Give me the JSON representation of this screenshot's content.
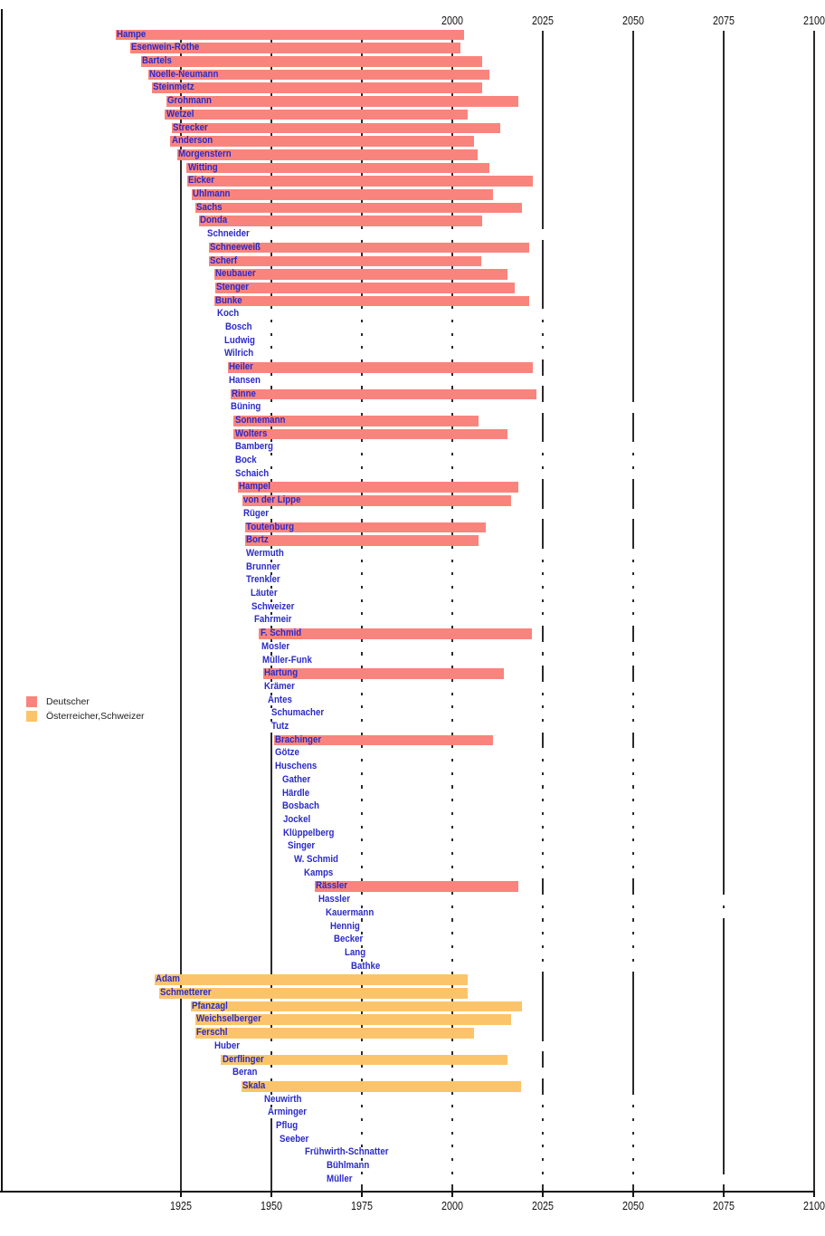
{
  "chart_data": {
    "type": "bar",
    "variant": "timeline-lifespan-gantt",
    "title": "",
    "xlabel": "",
    "ylabel": "",
    "x_unit": "year",
    "xlim": [
      1876.5,
      2100.25
    ],
    "bottom_tick_labels": [
      "1925",
      "1950",
      "1975",
      "2000",
      "2025",
      "2050",
      "2075",
      "2100"
    ],
    "top_tick_labels": [
      "2000",
      "2025",
      "2050",
      "2075",
      "2100"
    ],
    "gridline_years": [
      1925,
      1950,
      1975,
      2000,
      2025,
      2050,
      2075,
      2100
    ],
    "grid": "vertical-behind-bars",
    "legend_position": "left-middle",
    "legend": [
      {
        "label": "Deutscher",
        "color": "#f9847d"
      },
      {
        "label": "Österreicher,Schweizer",
        "color": "#fbc46a"
      }
    ],
    "colors": {
      "german_bar": "#f9847d",
      "austrian_swiss_bar": "#fbc46a",
      "living_bar_mask": "#ffffff",
      "name_label": "#2a2ac8",
      "axis": "#111111",
      "background": "#ffffff"
    },
    "people": [
      {
        "name": "Hampe",
        "group": "Deutscher",
        "birth": 1906.9,
        "death": 2003.2,
        "mask_until": null
      },
      {
        "name": "Esenwein-Rothe",
        "group": "Deutscher",
        "birth": 1910.9,
        "death": 2002.2,
        "mask_until": null
      },
      {
        "name": "Bartels",
        "group": "Deutscher",
        "birth": 1914.0,
        "death": 2008.2,
        "mask_until": null
      },
      {
        "name": "Noelle-Neumann",
        "group": "Deutscher",
        "birth": 1915.9,
        "death": 2010.2,
        "mask_until": null
      },
      {
        "name": "Steinmetz",
        "group": "Deutscher",
        "birth": 1917.0,
        "death": 2008.2,
        "mask_until": null
      },
      {
        "name": "Grohmann",
        "group": "Deutscher",
        "birth": 1920.9,
        "death": 2018.2,
        "mask_until": null
      },
      {
        "name": "Wetzel",
        "group": "Deutscher",
        "birth": 1920.6,
        "death": 2004.2,
        "mask_until": null
      },
      {
        "name": "Strecker",
        "group": "Deutscher",
        "birth": 1922.4,
        "death": 2013.3,
        "mask_until": null
      },
      {
        "name": "Anderson",
        "group": "Deutscher",
        "birth": 1922.1,
        "death": 2006.1,
        "mask_until": null
      },
      {
        "name": "Morgenstern",
        "group": "Deutscher",
        "birth": 1923.9,
        "death": 2007.1,
        "mask_until": null
      },
      {
        "name": "Witting",
        "group": "Deutscher",
        "birth": 1926.6,
        "death": 2010.2,
        "mask_until": null
      },
      {
        "name": "Eicker",
        "group": "Deutscher",
        "birth": 1926.7,
        "death": 2022.3,
        "mask_until": null
      },
      {
        "name": "Uhlmann",
        "group": "Deutscher",
        "birth": 1928.0,
        "death": 2011.2,
        "mask_until": null
      },
      {
        "name": "Sachs",
        "group": "Deutscher",
        "birth": 1929.0,
        "death": 2019.3,
        "mask_until": null
      },
      {
        "name": "Donda",
        "group": "Deutscher",
        "birth": 1929.9,
        "death": 2008.2,
        "mask_until": null
      },
      {
        "name": "Schneider",
        "group": "Deutscher",
        "birth": 1931.9,
        "death": null,
        "mask_until": 2040
      },
      {
        "name": "Schneeweiß",
        "group": "Deutscher",
        "birth": 1932.7,
        "death": 2021.2,
        "mask_until": null
      },
      {
        "name": "Scherf",
        "group": "Deutscher",
        "birth": 1932.7,
        "death": 2008.1,
        "mask_until": null
      },
      {
        "name": "Neubauer",
        "group": "Deutscher",
        "birth": 1934.3,
        "death": 2015.2,
        "mask_until": null
      },
      {
        "name": "Stenger",
        "group": "Deutscher",
        "birth": 1934.5,
        "death": 2017.2,
        "mask_until": null
      },
      {
        "name": "Bunke",
        "group": "Deutscher",
        "birth": 1934.3,
        "death": 2021.2,
        "mask_until": null
      },
      {
        "name": "Koch",
        "group": "Deutscher",
        "birth": 1934.7,
        "death": null,
        "mask_until": 2040
      },
      {
        "name": "Bosch",
        "group": "Deutscher",
        "birth": 1937.0,
        "death": null,
        "mask_until": 2040
      },
      {
        "name": "Ludwig",
        "group": "Deutscher",
        "birth": 1936.8,
        "death": null,
        "mask_until": 2040
      },
      {
        "name": "Wilrich",
        "group": "Deutscher",
        "birth": 1936.7,
        "death": null,
        "mask_until": 2040
      },
      {
        "name": "Heiler",
        "group": "Deutscher",
        "birth": 1938.0,
        "death": 2022.2,
        "mask_until": null
      },
      {
        "name": "Hansen",
        "group": "Deutscher",
        "birth": 1937.9,
        "death": null,
        "mask_until": 2040
      },
      {
        "name": "Rinne",
        "group": "Deutscher",
        "birth": 1938.8,
        "death": 2023.2,
        "mask_until": null
      },
      {
        "name": "Büning",
        "group": "Deutscher",
        "birth": 1938.5,
        "death": null,
        "mask_until": 2062
      },
      {
        "name": "Sonnemann",
        "group": "Deutscher",
        "birth": 1939.6,
        "death": 2007.2,
        "mask_until": null
      },
      {
        "name": "Wolters",
        "group": "Deutscher",
        "birth": 1939.6,
        "death": 2015.2,
        "mask_until": null
      },
      {
        "name": "Bamberg",
        "group": "Deutscher",
        "birth": 1939.7,
        "death": null,
        "mask_until": 2062
      },
      {
        "name": "Bock",
        "group": "Deutscher",
        "birth": 1939.7,
        "death": null,
        "mask_until": 2062
      },
      {
        "name": "Schaich",
        "group": "Deutscher",
        "birth": 1939.7,
        "death": null,
        "mask_until": 2062
      },
      {
        "name": "Hampel",
        "group": "Deutscher",
        "birth": 1940.8,
        "death": 2018.2,
        "mask_until": null
      },
      {
        "name": "von der Lippe",
        "group": "Deutscher",
        "birth": 1941.9,
        "death": 2016.2,
        "mask_until": null
      },
      {
        "name": "Rüger",
        "group": "Deutscher",
        "birth": 1941.9,
        "death": null,
        "mask_until": 2062
      },
      {
        "name": "Toutenburg",
        "group": "Deutscher",
        "birth": 1942.7,
        "death": 2009.2,
        "mask_until": null
      },
      {
        "name": "Bortz",
        "group": "Deutscher",
        "birth": 1942.7,
        "death": 2007.2,
        "mask_until": null
      },
      {
        "name": "Wermuth",
        "group": "Deutscher",
        "birth": 1942.8,
        "death": null,
        "mask_until": 2062
      },
      {
        "name": "Brunner",
        "group": "Deutscher",
        "birth": 1942.8,
        "death": null,
        "mask_until": 2062
      },
      {
        "name": "Trenkler",
        "group": "Deutscher",
        "birth": 1942.8,
        "death": null,
        "mask_until": 2062
      },
      {
        "name": "Läuter",
        "group": "Deutscher",
        "birth": 1943.9,
        "death": null,
        "mask_until": 2062
      },
      {
        "name": "Schweizer",
        "group": "Deutscher",
        "birth": 1944.1,
        "death": null,
        "mask_until": 2062
      },
      {
        "name": "Fahrmeir",
        "group": "Deutscher",
        "birth": 1944.9,
        "death": null,
        "mask_until": 2062
      },
      {
        "name": "F. Schmid",
        "group": "Deutscher",
        "birth": 1946.6,
        "death": 2022.1,
        "mask_until": null
      },
      {
        "name": "Mosler",
        "group": "Deutscher",
        "birth": 1947.0,
        "death": null,
        "mask_until": 2062
      },
      {
        "name": "Müller-Funk",
        "group": "Deutscher",
        "birth": 1947.2,
        "death": null,
        "mask_until": 2062
      },
      {
        "name": "Hartung",
        "group": "Deutscher",
        "birth": 1947.8,
        "death": 2014.3,
        "mask_until": null
      },
      {
        "name": "Krämer",
        "group": "Deutscher",
        "birth": 1947.8,
        "death": null,
        "mask_until": 2062
      },
      {
        "name": "Antes",
        "group": "Deutscher",
        "birth": 1948.7,
        "death": null,
        "mask_until": 2062
      },
      {
        "name": "Schumacher",
        "group": "Deutscher",
        "birth": 1949.6,
        "death": null,
        "mask_until": 2062
      },
      {
        "name": "Tutz",
        "group": "Deutscher",
        "birth": 1949.8,
        "death": null,
        "mask_until": 2062
      },
      {
        "name": "Brachinger",
        "group": "Deutscher",
        "birth": 1950.7,
        "death": 2011.2,
        "mask_until": null
      },
      {
        "name": "Götze",
        "group": "Deutscher",
        "birth": 1950.8,
        "death": null,
        "mask_until": 2062
      },
      {
        "name": "Huschens",
        "group": "Deutscher",
        "birth": 1950.8,
        "death": null,
        "mask_until": 2062
      },
      {
        "name": "Gather",
        "group": "Deutscher",
        "birth": 1952.7,
        "death": null,
        "mask_until": 2062
      },
      {
        "name": "Härdle",
        "group": "Deutscher",
        "birth": 1952.7,
        "death": null,
        "mask_until": 2062
      },
      {
        "name": "Bosbach",
        "group": "Deutscher",
        "birth": 1952.7,
        "death": null,
        "mask_until": 2062
      },
      {
        "name": "Jockel",
        "group": "Deutscher",
        "birth": 1952.9,
        "death": null,
        "mask_until": 2062
      },
      {
        "name": "Klüppelberg",
        "group": "Deutscher",
        "birth": 1952.9,
        "death": null,
        "mask_until": 2062
      },
      {
        "name": "Singer",
        "group": "Deutscher",
        "birth": 1954.1,
        "death": null,
        "mask_until": 2062
      },
      {
        "name": "W. Schmid",
        "group": "Deutscher",
        "birth": 1955.9,
        "death": null,
        "mask_until": 2062
      },
      {
        "name": "Kamps",
        "group": "Deutscher",
        "birth": 1958.6,
        "death": null,
        "mask_until": 2062
      },
      {
        "name": "Rässler",
        "group": "Deutscher",
        "birth": 1961.9,
        "death": 2018.3,
        "mask_until": null
      },
      {
        "name": "Hassler",
        "group": "Deutscher",
        "birth": 1962.8,
        "death": null,
        "mask_until": 2090
      },
      {
        "name": "Kauermann",
        "group": "Deutscher",
        "birth": 1964.8,
        "death": null,
        "mask_until": 2090
      },
      {
        "name": "Hennig",
        "group": "Deutscher",
        "birth": 1966.0,
        "death": null,
        "mask_until": 2062
      },
      {
        "name": "Becker",
        "group": "Deutscher",
        "birth": 1966.9,
        "death": null,
        "mask_until": 2062
      },
      {
        "name": "Lang",
        "group": "Deutscher",
        "birth": 1969.9,
        "death": null,
        "mask_until": 2062
      },
      {
        "name": "Bathke",
        "group": "Deutscher",
        "birth": 1971.8,
        "death": null,
        "mask_until": 2062
      },
      {
        "name": "Adam",
        "group": "Österreicher,Schweizer",
        "birth": 1917.7,
        "death": 2004.2,
        "mask_until": null
      },
      {
        "name": "Schmetterer",
        "group": "Österreicher,Schweizer",
        "birth": 1919.0,
        "death": 2004.2,
        "mask_until": null
      },
      {
        "name": "Pfanzagl",
        "group": "Österreicher,Schweizer",
        "birth": 1927.8,
        "death": 2019.2,
        "mask_until": null
      },
      {
        "name": "Weichselberger",
        "group": "Österreicher,Schweizer",
        "birth": 1928.9,
        "death": 2016.3,
        "mask_until": null
      },
      {
        "name": "Ferschl",
        "group": "Österreicher,Schweizer",
        "birth": 1928.9,
        "death": 2006.1,
        "mask_until": null
      },
      {
        "name": "Huber",
        "group": "Österreicher,Schweizer",
        "birth": 1933.9,
        "death": null,
        "mask_until": 2040
      },
      {
        "name": "Derflinger",
        "group": "Österreicher,Schweizer",
        "birth": 1936.1,
        "death": 2015.2,
        "mask_until": null
      },
      {
        "name": "Beran",
        "group": "Österreicher,Schweizer",
        "birth": 1938.9,
        "death": null,
        "mask_until": 2040
      },
      {
        "name": "Skala",
        "group": "Österreicher,Schweizer",
        "birth": 1941.8,
        "death": 2019.0,
        "mask_until": null
      },
      {
        "name": "Neuwirth",
        "group": "Österreicher,Schweizer",
        "birth": 1947.8,
        "death": null,
        "mask_until": 2062
      },
      {
        "name": "Arminger",
        "group": "Österreicher,Schweizer",
        "birth": 1948.7,
        "death": null,
        "mask_until": 2062
      },
      {
        "name": "Pflug",
        "group": "Österreicher,Schweizer",
        "birth": 1951.0,
        "death": null,
        "mask_until": 2062
      },
      {
        "name": "Seeber",
        "group": "Österreicher,Schweizer",
        "birth": 1951.9,
        "death": null,
        "mask_until": 2062
      },
      {
        "name": "Frühwirth-Schnatter",
        "group": "Österreicher,Schweizer",
        "birth": 1958.9,
        "death": null,
        "mask_until": 2062
      },
      {
        "name": "Bühlmann",
        "group": "Österreicher,Schweizer",
        "birth": 1965.0,
        "death": null,
        "mask_until": 2062
      },
      {
        "name": "Müller",
        "group": "Österreicher,Schweizer",
        "birth": 1965.0,
        "death": null,
        "mask_until": 2090
      }
    ]
  }
}
